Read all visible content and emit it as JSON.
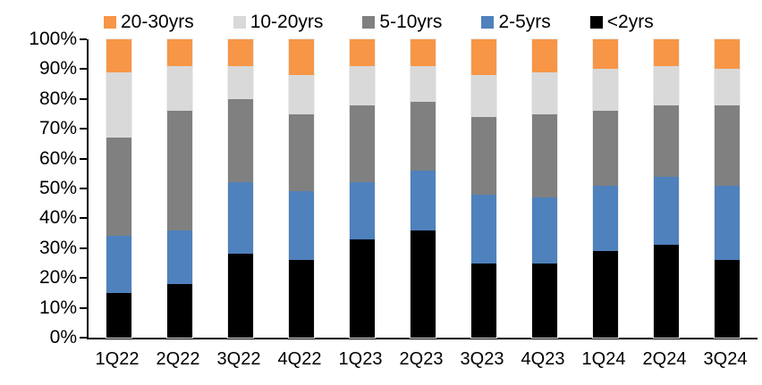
{
  "chart_data": {
    "type": "bar",
    "stacked": true,
    "percent_stacked": true,
    "title": "",
    "xlabel": "",
    "ylabel": "",
    "ylim": [
      0,
      100
    ],
    "ytick_step": 10,
    "ytick_suffix": "%",
    "grid": false,
    "legend_position": "top",
    "legend_order": [
      "20-30yrs",
      "10-20yrs",
      "5-10yrs",
      "2-5yrs",
      "<2yrs"
    ],
    "categories": [
      "1Q22",
      "2Q22",
      "3Q22",
      "4Q22",
      "1Q23",
      "2Q23",
      "3Q23",
      "4Q23",
      "1Q24",
      "2Q24",
      "3Q24"
    ],
    "series": [
      {
        "name": "<2yrs",
        "color": "#000000",
        "values": [
          15,
          18,
          28,
          26,
          33,
          36,
          25,
          25,
          29,
          31,
          26
        ]
      },
      {
        "name": "2-5yrs",
        "color": "#4F81BD",
        "values": [
          19,
          18,
          24,
          23,
          19,
          20,
          23,
          22,
          22,
          23,
          25
        ]
      },
      {
        "name": "5-10yrs",
        "color": "#808080",
        "values": [
          33,
          40,
          28,
          26,
          26,
          23,
          26,
          28,
          25,
          24,
          27
        ]
      },
      {
        "name": "10-20yrs",
        "color": "#D9D9D9",
        "values": [
          22,
          15,
          11,
          13,
          13,
          12,
          14,
          14,
          14,
          13,
          12
        ]
      },
      {
        "name": "20-30yrs",
        "color": "#F79646",
        "values": [
          11,
          9,
          9,
          12,
          9,
          9,
          12,
          11,
          10,
          9,
          10
        ]
      }
    ],
    "colors": {
      "axis": "#000000",
      "text": "#000000",
      "background": "#FFFFFF"
    }
  }
}
